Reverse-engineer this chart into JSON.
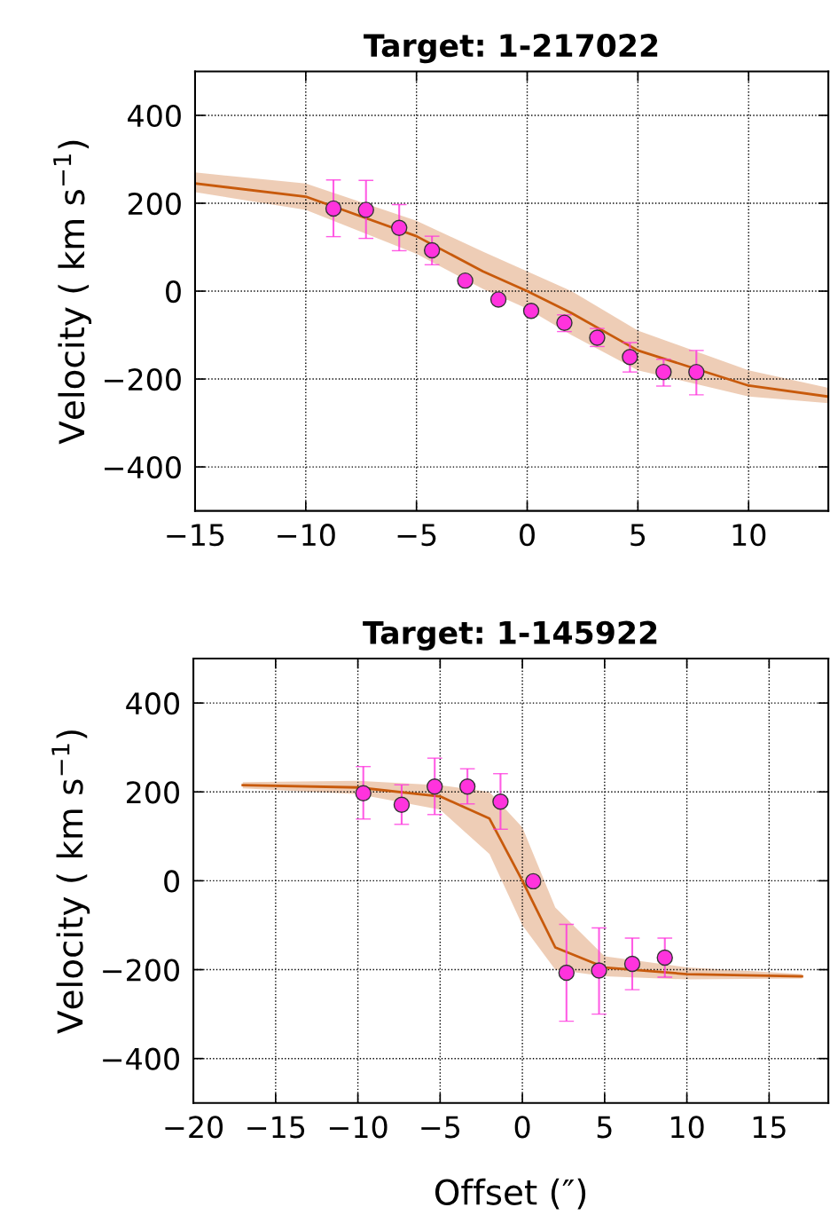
{
  "chart_data": [
    {
      "type": "scatter",
      "title": "Target: 1-217022",
      "ylabel": "Velocity ( km s$^{−1}$)",
      "xlim": [
        -15,
        13.6
      ],
      "ylim": [
        -500,
        500
      ],
      "xticks": [
        -15,
        -10,
        -5,
        0,
        5,
        10
      ],
      "yticks": [
        -400,
        -200,
        0,
        200,
        400
      ],
      "grid": true,
      "series": [
        {
          "type": "line",
          "color": "#c85a0c",
          "x": [
            -15,
            -10,
            -5,
            -2,
            0,
            2,
            5,
            10,
            13.6
          ],
          "values": [
            245,
            215,
            125,
            45,
            0,
            -50,
            -135,
            -215,
            -240
          ],
          "lower": [
            225,
            185,
            85,
            5,
            -40,
            -100,
            -180,
            -240,
            -255
          ],
          "upper": [
            270,
            245,
            160,
            90,
            45,
            0,
            -90,
            -180,
            -220
          ]
        },
        {
          "type": "scatter",
          "marker": "circle",
          "color": "#ff33dd",
          "x": [
            -8.75,
            -7.28,
            -5.78,
            -4.3,
            -2.8,
            -1.3,
            0.18,
            1.68,
            3.16,
            4.64,
            6.16,
            7.64
          ],
          "values": [
            188,
            185,
            144,
            93,
            24,
            -19,
            -45,
            -72,
            -106,
            -150,
            -184,
            -184
          ],
          "errors": [
            [
              124,
              253
            ],
            [
              120,
              252
            ],
            [
              92,
              197
            ],
            [
              60,
              125
            ],
            null,
            null,
            null,
            [
              -92,
              -54
            ],
            [
              -126,
              -85
            ],
            [
              -184,
              -117
            ],
            [
              -216,
              -155
            ],
            [
              -236,
              -135
            ]
          ]
        }
      ]
    },
    {
      "type": "scatter",
      "title": "Target: 1-145922",
      "ylabel": "Velocity ( km s$^{−1}$)",
      "xlabel": "Offset (″)",
      "xlim": [
        -20,
        18.6
      ],
      "ylim": [
        -500,
        500
      ],
      "xticks": [
        -20,
        -15,
        -10,
        -5,
        0,
        5,
        10,
        15
      ],
      "yticks": [
        -400,
        -200,
        0,
        200,
        400
      ],
      "grid": true,
      "series": [
        {
          "type": "line",
          "color": "#c85a0c",
          "x": [
            -17,
            -10,
            -5,
            -2,
            0,
            2,
            5,
            10,
            17
          ],
          "values": [
            215,
            210,
            190,
            140,
            0,
            -150,
            -195,
            -210,
            -215
          ],
          "lower": [
            208,
            195,
            160,
            60,
            -100,
            -200,
            -215,
            -222,
            -220
          ],
          "upper": [
            222,
            225,
            215,
            200,
            120,
            -60,
            -170,
            -195,
            -210
          ]
        },
        {
          "type": "scatter",
          "marker": "circle",
          "color": "#ff33dd",
          "x": [
            -9.67,
            -7.34,
            -5.33,
            -3.34,
            -1.33,
            0.66,
            2.68,
            4.66,
            6.68,
            8.66
          ],
          "values": [
            197,
            171,
            212,
            212,
            178,
            -1,
            -207,
            -202,
            -187,
            -173
          ],
          "errors": [
            [
              139,
              257
            ],
            [
              127,
              216
            ],
            [
              149,
              276
            ],
            [
              173,
              252
            ],
            [
              116,
              241
            ],
            null,
            [
              -316,
              -98
            ],
            [
              -300,
              -106
            ],
            [
              -245,
              -129
            ],
            [
              -217,
              -129
            ]
          ]
        }
      ]
    }
  ]
}
